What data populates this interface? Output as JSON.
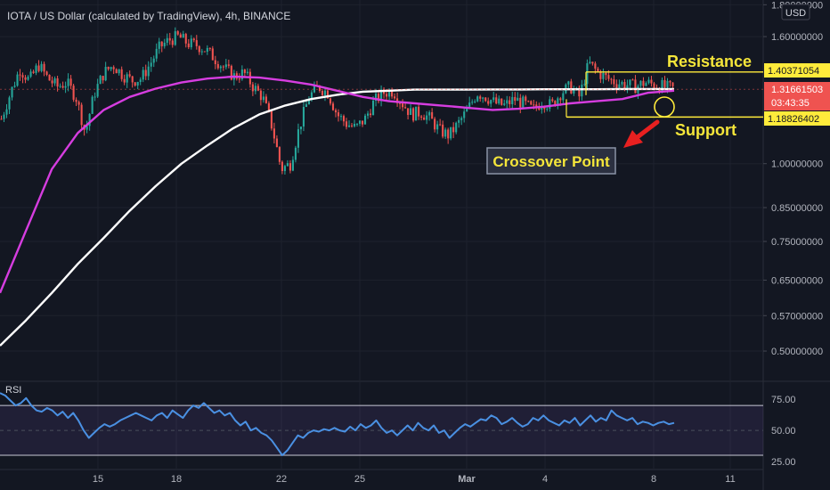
{
  "header": {
    "symbol_title": "IOTA / US Dollar (calculated by TradingView), 4h, BINANCE",
    "currency": "USD"
  },
  "price_axis": {
    "ticks": [
      "1.80000000",
      "1.60000000",
      "1.00000000",
      "0.85000000",
      "0.75000000",
      "0.65000000",
      "0.57000000",
      "0.50000000"
    ],
    "tick_values": [
      1.8,
      1.6,
      1.0,
      0.85,
      0.75,
      0.65,
      0.57,
      0.5
    ],
    "resistance_value": "1.40371054",
    "last_price": "1.31661503",
    "countdown": "03:43:35",
    "support_value": "1.18826402"
  },
  "rsi_panel": {
    "label": "RSI",
    "ticks": [
      "75.00",
      "50.00",
      "25.00"
    ],
    "tick_values": [
      75,
      50,
      25
    ],
    "upper_band": 70,
    "lower_band": 30
  },
  "time_axis": {
    "labels": [
      "15",
      "18",
      "22",
      "25",
      "Mar",
      "4",
      "8",
      "11"
    ]
  },
  "annotations": {
    "resistance": "Resistance",
    "support": "Support",
    "crossover": "Crossover Point"
  },
  "colors": {
    "background": "#131722",
    "up": "#26a69a",
    "down": "#ef5350",
    "ma_fast": "#d63de0",
    "ma_slow": "#ffffff",
    "rsi_line": "#4a90e2",
    "level_line": "#ffeb3b",
    "annotation_text": "#f5e63a",
    "arrow": "#e82020"
  },
  "chart_data": {
    "type": "line",
    "title": "IOTA / US Dollar (calculated by TradingView), 4h, BINANCE",
    "y_scale": "log",
    "ylim": [
      0.45,
      1.82
    ],
    "x_labels": [
      "15",
      "18",
      "22",
      "25",
      "Mar",
      "4",
      "8",
      "11"
    ],
    "levels": {
      "resistance": 1.40371054,
      "support": 1.18826402,
      "last": 1.31661503
    },
    "candle_path": [
      1.18,
      1.3,
      1.42,
      1.36,
      1.44,
      1.37,
      1.33,
      1.35,
      1.28,
      1.12,
      1.3,
      1.4,
      1.44,
      1.39,
      1.36,
      1.37,
      1.45,
      1.54,
      1.58,
      1.6,
      1.56,
      1.55,
      1.52,
      1.47,
      1.42,
      1.38,
      1.4,
      1.33,
      1.28,
      1.15,
      0.98,
      1.0,
      1.15,
      1.28,
      1.33,
      1.3,
      1.2,
      1.16,
      1.14,
      1.18,
      1.26,
      1.3,
      1.31,
      1.25,
      1.2,
      1.21,
      1.18,
      1.13,
      1.11,
      1.16,
      1.22,
      1.3,
      1.28,
      1.25,
      1.24,
      1.27,
      1.25,
      1.22,
      1.26,
      1.24,
      1.3,
      1.33,
      1.28,
      1.45,
      1.4,
      1.37,
      1.35,
      1.34,
      1.33,
      1.35,
      1.34,
      1.33,
      1.32
    ],
    "series": [
      {
        "values": [
          0.62,
          0.78,
          0.98,
          1.12,
          1.22,
          1.28,
          1.32,
          1.35,
          1.37,
          1.38,
          1.375,
          1.36,
          1.34,
          1.31,
          1.28,
          1.26,
          1.25,
          1.24,
          1.23,
          1.22,
          1.225,
          1.235,
          1.25,
          1.26,
          1.27,
          1.3,
          1.31
        ]
      },
      {
        "values": [
          0.51,
          0.56,
          0.62,
          0.69,
          0.76,
          0.84,
          0.92,
          1.0,
          1.07,
          1.14,
          1.2,
          1.24,
          1.27,
          1.29,
          1.305,
          1.31,
          1.315,
          1.315,
          1.315,
          1.316,
          1.316,
          1.317,
          1.317,
          1.317,
          1.318,
          1.318,
          1.318
        ]
      }
    ],
    "rsi": [
      80,
      78,
      74,
      70,
      72,
      76,
      70,
      66,
      65,
      68,
      66,
      62,
      65,
      60,
      64,
      58,
      50,
      44,
      48,
      52,
      55,
      53,
      55,
      58,
      60,
      62,
      64,
      62,
      60,
      58,
      62,
      64,
      60,
      66,
      63,
      60,
      66,
      70,
      68,
      72,
      68,
      64,
      66,
      62,
      64,
      58,
      54,
      57,
      50,
      52,
      48,
      46,
      42,
      36,
      30,
      34,
      40,
      46,
      44,
      48,
      50,
      49,
      51,
      50,
      52,
      50,
      49,
      53,
      50,
      55,
      52,
      54,
      58,
      52,
      48,
      50,
      46,
      50,
      54,
      50,
      56,
      52,
      50,
      54,
      48,
      50,
      44,
      48,
      52,
      55,
      53,
      56,
      59,
      58,
      62,
      60,
      55,
      57,
      60,
      56,
      53,
      55,
      60,
      58,
      62,
      58,
      56,
      54,
      58,
      56,
      60,
      54,
      58,
      62,
      57,
      60,
      58,
      66,
      62,
      60,
      58,
      60,
      55,
      57,
      56,
      54,
      56,
      57,
      55,
      56
    ]
  }
}
